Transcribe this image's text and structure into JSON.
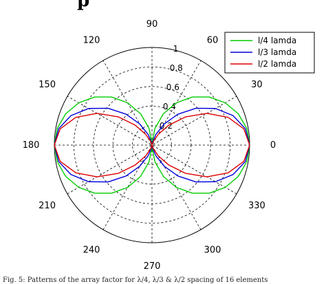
{
  "page": {
    "title_fragment": "p",
    "caption": "Fig. 5: Patterns of the array factor for λ/4, λ/3 & λ/2 spacing of 16 elements"
  },
  "chart_data": {
    "type": "polar-line",
    "angle_labels": [
      "0",
      "30",
      "60",
      "90",
      "120",
      "150",
      "180",
      "210",
      "240",
      "270",
      "300",
      "330"
    ],
    "radius_labels": [
      "0.2",
      "0.4",
      "0.6",
      "0.8",
      "1"
    ],
    "rlim": [
      0,
      1
    ],
    "legend_position": "top-right",
    "grid": true,
    "series": [
      {
        "name": "l/4 lamda",
        "color": "#00cc00",
        "theta_deg": [
          0,
          10,
          20,
          30,
          40,
          50,
          60,
          70,
          80,
          90,
          100,
          110,
          120,
          130,
          140,
          150,
          160,
          170,
          180,
          190,
          200,
          210,
          220,
          230,
          240,
          250,
          260,
          270,
          280,
          290,
          300,
          310,
          320,
          330,
          340,
          350,
          360
        ],
        "r": [
          1.0,
          0.985,
          0.94,
          0.866,
          0.766,
          0.643,
          0.5,
          0.342,
          0.174,
          0.02,
          0.174,
          0.342,
          0.5,
          0.643,
          0.766,
          0.866,
          0.94,
          0.985,
          1.0,
          0.985,
          0.94,
          0.866,
          0.766,
          0.643,
          0.5,
          0.342,
          0.174,
          0.02,
          0.174,
          0.342,
          0.5,
          0.643,
          0.766,
          0.866,
          0.94,
          0.985,
          1.0
        ]
      },
      {
        "name": "l/3 lamda",
        "color": "#0000dd",
        "theta_deg": [
          0,
          10,
          20,
          30,
          40,
          50,
          60,
          70,
          80,
          90,
          100,
          110,
          120,
          130,
          140,
          150,
          160,
          170,
          180,
          190,
          200,
          210,
          220,
          230,
          240,
          250,
          260,
          270,
          280,
          290,
          300,
          310,
          320,
          330,
          340,
          350,
          360
        ],
        "r": [
          1.0,
          0.97,
          0.883,
          0.75,
          0.587,
          0.413,
          0.25,
          0.117,
          0.03,
          0.01,
          0.03,
          0.117,
          0.25,
          0.413,
          0.587,
          0.75,
          0.883,
          0.97,
          1.0,
          0.97,
          0.883,
          0.75,
          0.587,
          0.413,
          0.25,
          0.117,
          0.03,
          0.01,
          0.03,
          0.117,
          0.25,
          0.413,
          0.587,
          0.75,
          0.883,
          0.97,
          1.0
        ]
      },
      {
        "name": "l/2 lamda",
        "color": "#dd0000",
        "theta_deg": [
          0,
          10,
          20,
          30,
          40,
          50,
          60,
          70,
          80,
          90,
          100,
          110,
          120,
          130,
          140,
          150,
          160,
          170,
          180,
          190,
          200,
          210,
          220,
          230,
          240,
          250,
          260,
          270,
          280,
          290,
          300,
          310,
          320,
          330,
          340,
          350,
          360
        ],
        "r": [
          1.0,
          0.955,
          0.83,
          0.65,
          0.45,
          0.265,
          0.125,
          0.04,
          0.005,
          0.0,
          0.005,
          0.04,
          0.125,
          0.265,
          0.45,
          0.65,
          0.83,
          0.955,
          1.0,
          0.955,
          0.83,
          0.65,
          0.45,
          0.265,
          0.125,
          0.04,
          0.005,
          0.0,
          0.005,
          0.04,
          0.125,
          0.265,
          0.45,
          0.65,
          0.83,
          0.955,
          1.0
        ]
      }
    ]
  }
}
